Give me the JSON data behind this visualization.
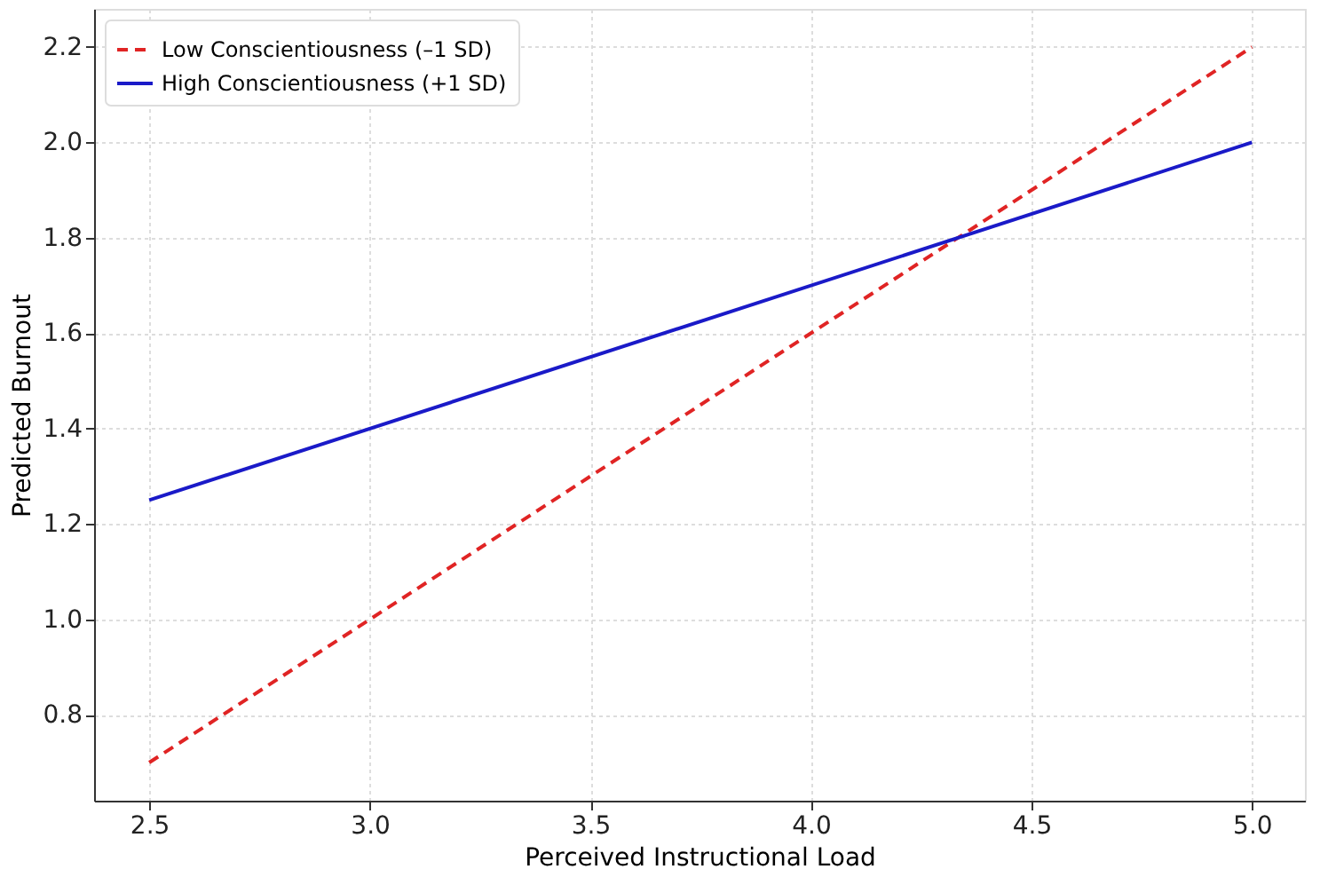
{
  "chart_data": {
    "type": "line",
    "xlabel": "Perceived Instructional Load",
    "ylabel": "Predicted Burnout",
    "x": [
      2.5,
      5.0
    ],
    "series": [
      {
        "name": "Low Conscientiousness (–1 SD)",
        "color": "#e02424",
        "line_style": "dashed",
        "values": [
          0.7,
          2.2
        ]
      },
      {
        "name": "High Conscientiousness (+1 SD)",
        "color": "#1a1ac8",
        "line_style": "solid",
        "values": [
          1.25,
          2.0
        ]
      }
    ],
    "xlim": [
      2.375,
      5.12
    ],
    "ylim": [
      0.62,
      2.28
    ],
    "xticks": [
      2.5,
      {
        "value": 3,
        "label": "3.0"
      },
      3.5,
      {
        "value": 4,
        "label": "4.0"
      },
      4.5,
      {
        "value": 5,
        "label": "5.0"
      }
    ],
    "yticks": [
      0.8,
      {
        "value": 1,
        "label": "1.0"
      },
      1.2,
      1.4,
      1.6,
      1.8,
      {
        "value": 2,
        "label": "2.0"
      },
      2.2
    ],
    "grid": true,
    "legend": "top left",
    "marker": "none"
  }
}
